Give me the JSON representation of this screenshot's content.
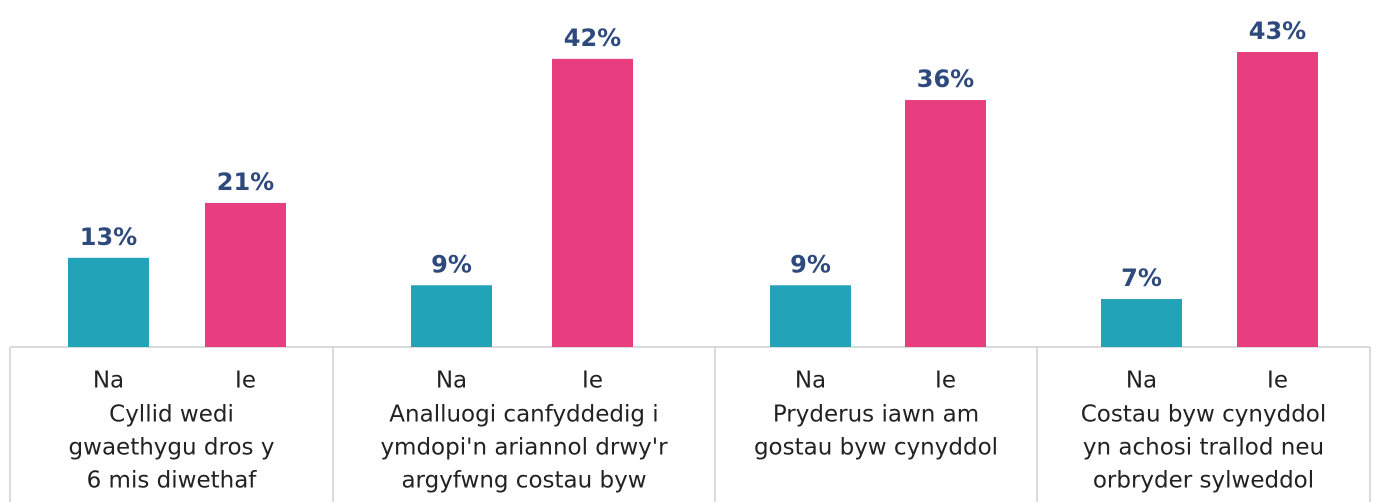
{
  "chart_data": {
    "type": "bar",
    "categories": [
      [
        "Cyllid wedi",
        "gwaethygu dros y",
        "6 mis diwethaf"
      ],
      [
        "Analluogi canfyddedig i",
        "ymdopi'n ariannol drwy'r",
        "argyfwng costau byw"
      ],
      [
        "Pryderus iawn am",
        "gostau byw cynyddol"
      ],
      [
        "Costau byw cynyddol",
        "yn achosi trallod neu",
        "orbryder sylweddol"
      ]
    ],
    "series": [
      {
        "name": "Na",
        "color": "#23a3b8",
        "values": [
          13,
          9,
          9,
          7
        ],
        "value_labels": [
          "13%",
          "9%",
          "9%",
          "7%"
        ]
      },
      {
        "name": "Ie",
        "color": "#e83e80",
        "values": [
          21,
          42,
          36,
          43
        ],
        "value_labels": [
          "21%",
          "42%",
          "36%",
          "43%"
        ]
      }
    ],
    "value_label_color": "#2e4a7d"
  }
}
